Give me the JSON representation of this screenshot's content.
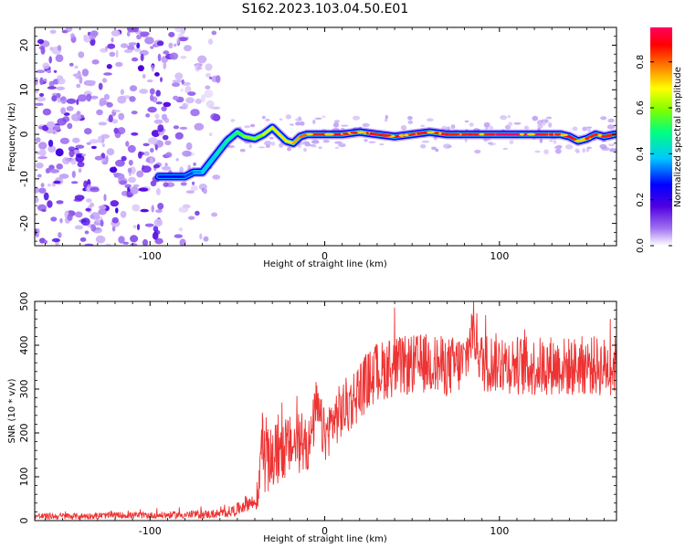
{
  "title": "S162.2023.103.04.50.E01",
  "chart_data": [
    {
      "type": "heatmap",
      "xlabel": "Height of straight line (km)",
      "ylabel": "Frequency (Hz)",
      "xlim": [
        -166,
        167
      ],
      "ylim": [
        -25,
        24
      ],
      "x_ticks": [
        -100,
        0,
        100
      ],
      "y_ticks": [
        -20,
        -10,
        0,
        10,
        20
      ],
      "colorbar": {
        "label": "Normalized spectral amplitude",
        "range": [
          0.0,
          0.95
        ],
        "ticks": [
          0.0,
          0.2,
          0.4,
          0.6,
          0.8
        ],
        "colors": [
          "#ffffff",
          "#a070f0",
          "#5000e0",
          "#0000ff",
          "#00c8ff",
          "#00ff80",
          "#7cff00",
          "#ffff00",
          "#ff8000",
          "#ff0000",
          "#ff0060"
        ]
      },
      "ridge": {
        "x": [
          -95,
          -80,
          -75,
          -70,
          -62,
          -56,
          -50,
          -46,
          -40,
          -35,
          -30,
          -26,
          -22,
          -18,
          -14,
          -10,
          0,
          10,
          20,
          30,
          40,
          50,
          60,
          70,
          80,
          90,
          100,
          110,
          120,
          130,
          135,
          140,
          145,
          150,
          155,
          160,
          166
        ],
        "frequency": [
          -9.5,
          -9.5,
          -8.5,
          -8.5,
          -4.5,
          -1.5,
          0.5,
          -0.5,
          -1.0,
          0.0,
          1.5,
          0.0,
          -1.5,
          -2.0,
          -0.5,
          0.0,
          0.0,
          0.0,
          0.5,
          0.0,
          -0.5,
          0.0,
          0.5,
          0.0,
          0.0,
          0.0,
          0.0,
          0.0,
          0.0,
          0.0,
          0.0,
          -0.5,
          -1.5,
          -1.0,
          0.0,
          -0.5,
          0.0
        ],
        "peak_amplitude": [
          0.25,
          0.3,
          0.35,
          0.4,
          0.45,
          0.5,
          0.55,
          0.6,
          0.6,
          0.65,
          0.7,
          0.7,
          0.7,
          0.75,
          0.8,
          0.85,
          0.9,
          0.9,
          0.9,
          0.9,
          0.9,
          0.9,
          0.9,
          0.9,
          0.9,
          0.95,
          0.95,
          0.95,
          0.95,
          0.9,
          0.9,
          0.9,
          0.85,
          0.85,
          0.85,
          0.85,
          0.85
        ]
      },
      "noise_region_x": [
        -166,
        -60
      ]
    },
    {
      "type": "line",
      "xlabel": "Height of straight line (km)",
      "ylabel": "SNR (10 * v/v)",
      "xlim": [
        -166,
        167
      ],
      "ylim": [
        0,
        500
      ],
      "x_ticks": [
        -100,
        0,
        100
      ],
      "y_ticks": [
        0,
        100,
        200,
        300,
        400,
        500
      ],
      "color": "#ee3333",
      "series": [
        {
          "x": [
            -166,
            -140,
            -120,
            -100,
            -80,
            -60,
            -50,
            -45,
            -40,
            -38,
            -36,
            -34,
            -30,
            -25,
            -20,
            -15,
            -10,
            -8,
            -5,
            0,
            5,
            10,
            15,
            20,
            25,
            30,
            40,
            50,
            60,
            70,
            80,
            85,
            87,
            90,
            100,
            110,
            120,
            130,
            140,
            150,
            160,
            167
          ],
          "values": [
            10,
            10,
            12,
            12,
            13,
            15,
            25,
            40,
            40,
            50,
            200,
            130,
            140,
            160,
            170,
            175,
            170,
            180,
            260,
            190,
            230,
            250,
            270,
            300,
            320,
            340,
            350,
            355,
            360,
            350,
            360,
            440,
            410,
            360,
            360,
            355,
            350,
            355,
            350,
            355,
            350,
            355
          ],
          "spread": [
            6,
            6,
            6,
            6,
            7,
            8,
            12,
            15,
            15,
            20,
            50,
            60,
            60,
            60,
            55,
            55,
            50,
            50,
            50,
            50,
            50,
            55,
            55,
            55,
            55,
            55,
            55,
            55,
            55,
            55,
            55,
            55,
            55,
            55,
            55,
            55,
            55,
            55,
            55,
            55,
            55,
            55
          ]
        }
      ]
    }
  ]
}
